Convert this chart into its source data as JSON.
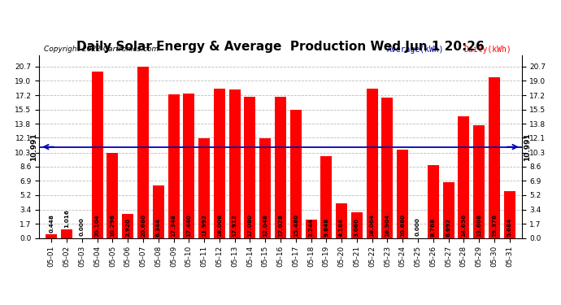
{
  "title": "Daily Solar Energy & Average  Production Wed Jun 1 20:26",
  "copyright": "Copyright 2022 Cartronics.com",
  "legend_avg": "Average(kWh)",
  "legend_daily": "Daily(kWh)",
  "average_line": 10.991,
  "average_label": "10.991",
  "categories": [
    "05-01",
    "05-02",
    "05-03",
    "05-04",
    "05-05",
    "05-06",
    "05-07",
    "05-08",
    "05-09",
    "05-10",
    "05-11",
    "05-12",
    "05-13",
    "05-14",
    "05-15",
    "05-16",
    "05-17",
    "05-18",
    "05-19",
    "05-20",
    "05-21",
    "05-22",
    "05-23",
    "05-24",
    "05-25",
    "05-26",
    "05-27",
    "05-28",
    "05-29",
    "05-30",
    "05-31"
  ],
  "values": [
    0.448,
    1.016,
    0.0,
    20.104,
    10.296,
    2.92,
    20.68,
    6.344,
    17.348,
    17.44,
    11.992,
    18.008,
    17.912,
    17.08,
    12.048,
    17.028,
    15.48,
    2.244,
    9.848,
    4.164,
    3.06,
    18.064,
    16.904,
    10.68,
    0.0,
    8.768,
    6.692,
    14.656,
    13.608,
    19.376,
    5.684
  ],
  "bar_color": "#FF0000",
  "avg_line_color": "#0000BB",
  "background_color": "#FFFFFF",
  "grid_color": "#BBBBBB",
  "ylim": [
    0.0,
    22.1
  ],
  "yticks": [
    0.0,
    1.7,
    3.4,
    5.2,
    6.9,
    8.6,
    10.3,
    12.1,
    13.8,
    15.5,
    17.2,
    19.0,
    20.7
  ],
  "title_fontsize": 11,
  "tick_fontsize": 6.5,
  "value_fontsize": 5.2,
  "avg_label_fontsize": 6.5,
  "copyright_fontsize": 6.5
}
